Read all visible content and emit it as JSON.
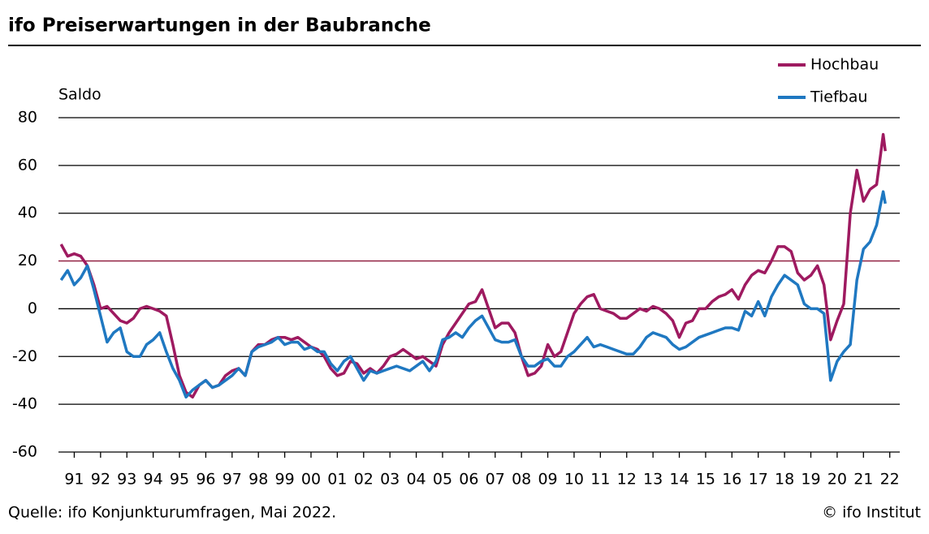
{
  "chart_data": {
    "type": "line",
    "title": "ifo Preiserwartungen in der Baubranche",
    "y_label": "Saldo",
    "source": "Quelle: ifo Konjunkturumfragen, Mai 2022.",
    "credit": "© ifo Institut",
    "x": [
      1991,
      1991.25,
      1991.5,
      1991.75,
      1992,
      1992.25,
      1992.5,
      1992.75,
      1993,
      1993.25,
      1993.5,
      1993.75,
      1994,
      1994.25,
      1994.5,
      1994.75,
      1995,
      1995.25,
      1995.5,
      1995.75,
      1996,
      1996.25,
      1996.5,
      1996.75,
      1997,
      1997.25,
      1997.5,
      1997.75,
      1998,
      1998.25,
      1998.5,
      1998.75,
      1999,
      1999.25,
      1999.5,
      1999.75,
      2000,
      2000.25,
      2000.5,
      2000.75,
      2001,
      2001.25,
      2001.5,
      2001.75,
      2002,
      2002.25,
      2002.5,
      2002.75,
      2003,
      2003.25,
      2003.5,
      2003.75,
      2004,
      2004.25,
      2004.5,
      2004.75,
      2005,
      2005.25,
      2005.5,
      2005.75,
      2006,
      2006.25,
      2006.5,
      2006.75,
      2007,
      2007.25,
      2007.5,
      2007.75,
      2008,
      2008.25,
      2008.5,
      2008.75,
      2009,
      2009.25,
      2009.5,
      2009.75,
      2010,
      2010.25,
      2010.5,
      2010.75,
      2011,
      2011.25,
      2011.5,
      2011.75,
      2012,
      2012.25,
      2012.5,
      2012.75,
      2013,
      2013.25,
      2013.5,
      2013.75,
      2014,
      2014.25,
      2014.5,
      2014.75,
      2015,
      2015.25,
      2015.5,
      2015.75,
      2016,
      2016.25,
      2016.5,
      2016.75,
      2017,
      2017.25,
      2017.5,
      2017.75,
      2018,
      2018.25,
      2018.5,
      2018.75,
      2019,
      2019.25,
      2019.5,
      2019.75,
      2020,
      2020.25,
      2020.5,
      2020.75,
      2021,
      2021.25,
      2021.5,
      2021.75,
      2022,
      2022.12,
      2022.25,
      2022.33
    ],
    "series": [
      {
        "name": "Hochbau",
        "color": "#9e1a60",
        "values": [
          27,
          22,
          23,
          22,
          18,
          10,
          0,
          1,
          -2,
          -5,
          -6,
          -4,
          0,
          1,
          0,
          -1,
          -3,
          -15,
          -28,
          -35,
          -37,
          -32,
          -30,
          -33,
          -32,
          -28,
          -26,
          -25,
          -28,
          -18,
          -15,
          -15,
          -13,
          -12,
          -12,
          -13,
          -12,
          -14,
          -16,
          -17,
          -20,
          -25,
          -28,
          -27,
          -22,
          -23,
          -27,
          -25,
          -27,
          -24,
          -20,
          -19,
          -17,
          -19,
          -21,
          -20,
          -22,
          -24,
          -15,
          -10,
          -6,
          -2,
          2,
          3,
          8,
          0,
          -8,
          -6,
          -6,
          -10,
          -20,
          -28,
          -27,
          -24,
          -15,
          -20,
          -18,
          -10,
          -2,
          2,
          5,
          6,
          0,
          -1,
          -2,
          -4,
          -4,
          -2,
          0,
          -1,
          1,
          0,
          -2,
          -5,
          -12,
          -6,
          -5,
          0,
          0,
          3,
          5,
          6,
          8,
          4,
          10,
          14,
          16,
          15,
          20,
          26,
          26,
          24,
          15,
          12,
          14,
          18,
          10,
          -13,
          -5,
          2,
          40,
          58,
          45,
          50,
          52,
          62,
          73,
          66
        ]
      },
      {
        "name": "Tiefbau",
        "color": "#1f78c1",
        "values": [
          12,
          16,
          10,
          13,
          18,
          8,
          -3,
          -14,
          -10,
          -8,
          -18,
          -20,
          -20,
          -15,
          -13,
          -10,
          -18,
          -25,
          -30,
          -37,
          -34,
          -32,
          -30,
          -33,
          -32,
          -30,
          -28,
          -25,
          -28,
          -18,
          -16,
          -15,
          -14,
          -12,
          -15,
          -14,
          -14,
          -17,
          -16,
          -18,
          -18,
          -23,
          -26,
          -22,
          -20,
          -25,
          -30,
          -26,
          -27,
          -26,
          -25,
          -24,
          -25,
          -26,
          -24,
          -22,
          -26,
          -22,
          -13,
          -12,
          -10,
          -12,
          -8,
          -5,
          -3,
          -8,
          -13,
          -14,
          -14,
          -13,
          -20,
          -24,
          -24,
          -22,
          -21,
          -24,
          -24,
          -20,
          -18,
          -15,
          -12,
          -16,
          -15,
          -16,
          -17,
          -18,
          -19,
          -19,
          -16,
          -12,
          -10,
          -11,
          -12,
          -15,
          -17,
          -16,
          -14,
          -12,
          -11,
          -10,
          -9,
          -8,
          -8,
          -9,
          -1,
          -3,
          3,
          -3,
          5,
          10,
          14,
          12,
          10,
          2,
          0,
          0,
          -2,
          -30,
          -22,
          -18,
          -15,
          12,
          25,
          28,
          35,
          42,
          49,
          44
        ]
      }
    ],
    "xlim": [
      1990.9,
      2022.88
    ],
    "xticks": [
      {
        "value": 1991.5,
        "label": "91"
      },
      {
        "value": 1992.5,
        "label": "92"
      },
      {
        "value": 1993.5,
        "label": "93"
      },
      {
        "value": 1994.5,
        "label": "94"
      },
      {
        "value": 1995.5,
        "label": "95"
      },
      {
        "value": 1996.5,
        "label": "96"
      },
      {
        "value": 1997.5,
        "label": "97"
      },
      {
        "value": 1998.5,
        "label": "98"
      },
      {
        "value": 1999.5,
        "label": "99"
      },
      {
        "value": 2000.5,
        "label": "00"
      },
      {
        "value": 2001.5,
        "label": "01"
      },
      {
        "value": 2002.5,
        "label": "02"
      },
      {
        "value": 2003.5,
        "label": "03"
      },
      {
        "value": 2004.5,
        "label": "04"
      },
      {
        "value": 2005.5,
        "label": "05"
      },
      {
        "value": 2006.5,
        "label": "06"
      },
      {
        "value": 2007.5,
        "label": "07"
      },
      {
        "value": 2008.5,
        "label": "08"
      },
      {
        "value": 2009.5,
        "label": "09"
      },
      {
        "value": 2010.5,
        "label": "10"
      },
      {
        "value": 2011.5,
        "label": "11"
      },
      {
        "value": 2012.5,
        "label": "12"
      },
      {
        "value": 2013.5,
        "label": "13"
      },
      {
        "value": 2014.5,
        "label": "14"
      },
      {
        "value": 2015.5,
        "label": "15"
      },
      {
        "value": 2016.5,
        "label": "16"
      },
      {
        "value": 2017.5,
        "label": "17"
      },
      {
        "value": 2018.5,
        "label": "18"
      },
      {
        "value": 2019.5,
        "label": "19"
      },
      {
        "value": 2020.5,
        "label": "20"
      },
      {
        "value": 2021.5,
        "label": "21"
      },
      {
        "value": 2022.5,
        "label": "22"
      }
    ],
    "ylim": [
      -60,
      80
    ],
    "yticks": [
      -60,
      -40,
      -20,
      0,
      20,
      40,
      60,
      80
    ],
    "grid": true,
    "grid_colors": [
      "#000000",
      "#000000",
      "#000000",
      "#000000",
      "#8b1538",
      "#000000",
      "#000000",
      "#000000"
    ],
    "legend": "top-right"
  }
}
